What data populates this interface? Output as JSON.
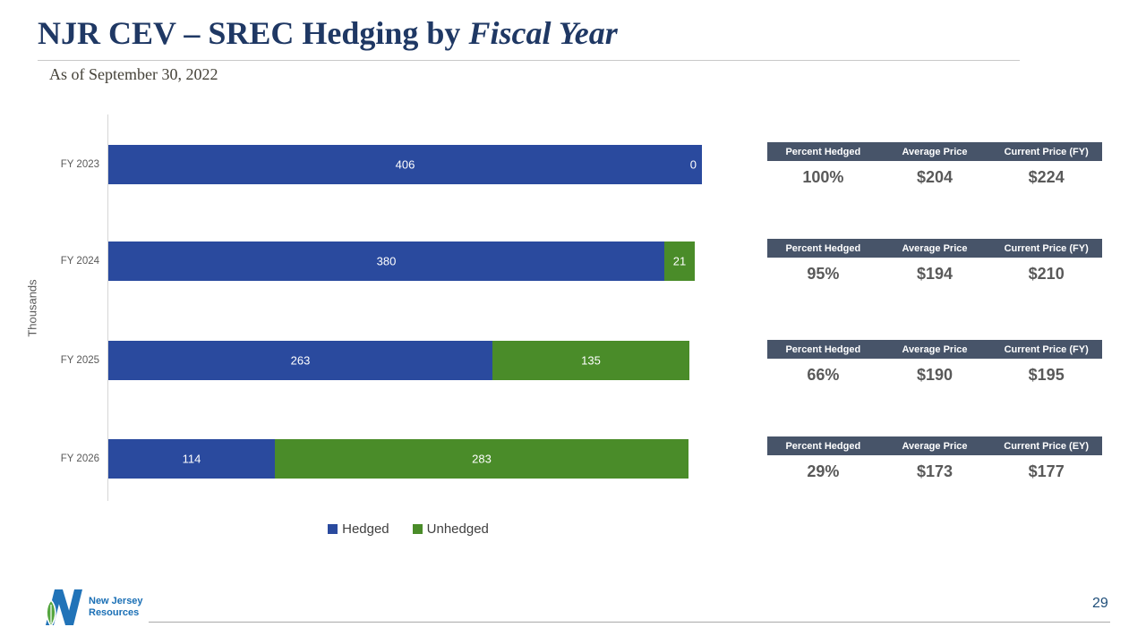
{
  "slide": {
    "title_main": "NJR CEV – SREC Hedging by ",
    "title_italic": "Fiscal Year",
    "subtitle": "As of September 30, 2022",
    "page_number": "29"
  },
  "logo": {
    "line1": "New Jersey",
    "line2": "Resources"
  },
  "chart_data": {
    "type": "bar",
    "orientation": "horizontal",
    "stacked": true,
    "categories": [
      "FY 2023",
      "FY 2024",
      "FY 2025",
      "FY 2026"
    ],
    "series": [
      {
        "name": "Hedged",
        "color": "#2a4a9e",
        "values": [
          406,
          380,
          263,
          114
        ]
      },
      {
        "name": "Unhedged",
        "color": "#4a8c29",
        "values": [
          0,
          21,
          135,
          283
        ]
      }
    ],
    "ylabel": "Thousands",
    "xlim": [
      0,
      410
    ],
    "legend_position": "bottom",
    "grid": false
  },
  "tables": [
    {
      "headers": [
        "Percent Hedged",
        "Average Price",
        "Current Price (FY)"
      ],
      "values": [
        "100%",
        "$204",
        "$224"
      ]
    },
    {
      "headers": [
        "Percent Hedged",
        "Average Price",
        "Current Price (FY)"
      ],
      "values": [
        "95%",
        "$194",
        "$210"
      ]
    },
    {
      "headers": [
        "Percent Hedged",
        "Average Price",
        "Current Price (FY)"
      ],
      "values": [
        "66%",
        "$190",
        "$195"
      ]
    },
    {
      "headers": [
        "Percent Hedged",
        "Average Price",
        "Current Price (EY)"
      ],
      "values": [
        "29%",
        "$173",
        "$177"
      ]
    }
  ],
  "colors": {
    "title": "#1f3864",
    "bar_blue": "#2a4a9e",
    "bar_green": "#4a8c29",
    "table_header_bg": "#475469",
    "value_text": "#595959",
    "page_number": "#1f4e79",
    "logo_blue": "#2173b8",
    "leaf_green": "#55a63f"
  }
}
